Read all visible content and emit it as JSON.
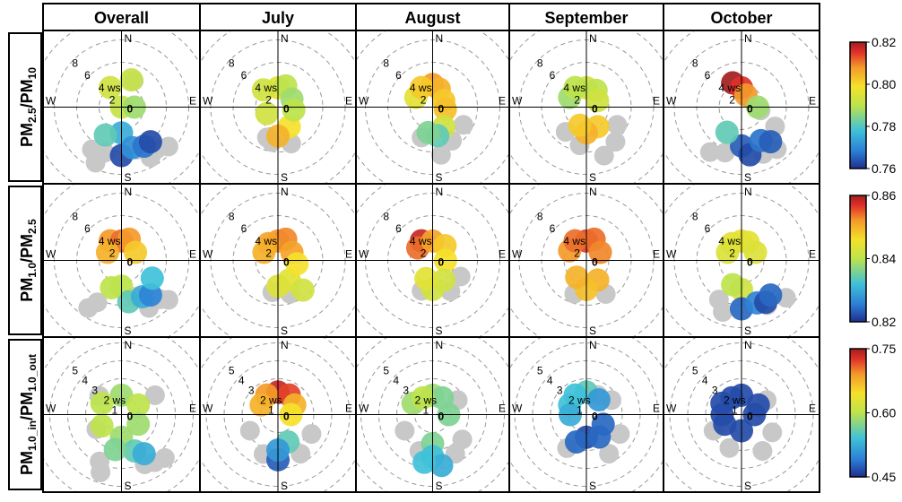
{
  "chart_data": {
    "type": "polar bivariate (wind-rose) plot grid",
    "columns": [
      "Overall",
      "July",
      "August",
      "September",
      "October"
    ],
    "rows": [
      {
        "label_parts": [
          [
            "PM",
            ""
          ],
          [
            "2.5",
            "sub"
          ],
          [
            "/PM",
            ""
          ],
          [
            "10",
            "sub"
          ]
        ],
        "radial_labels": [
          "8",
          "6",
          "4 ws",
          "2",
          "0"
        ],
        "colorbar": {
          "ticks": [
            "0.82",
            "0.80",
            "0.78",
            "0.76"
          ],
          "min": 0.76,
          "max": 0.82
        }
      },
      {
        "label_parts": [
          [
            "PM",
            ""
          ],
          [
            "1.0",
            "sub"
          ],
          [
            "/PM",
            ""
          ],
          [
            "2.5",
            "sub"
          ]
        ],
        "radial_labels": [
          "8",
          "6",
          "4 ws",
          "2",
          "0"
        ],
        "colorbar": {
          "ticks": [
            "0.86",
            "0.84",
            "0.82"
          ],
          "min": 0.82,
          "max": 0.86
        }
      },
      {
        "label_parts": [
          [
            "PM",
            ""
          ],
          [
            "1.0_in",
            "sub"
          ],
          [
            "/PM",
            ""
          ],
          [
            "1.0_out",
            "sub"
          ]
        ],
        "radial_labels": [
          "5",
          "4",
          "3",
          "2 ws",
          "1",
          "0"
        ],
        "colorbar": {
          "ticks": [
            "0.75",
            "0.60",
            "0.45"
          ],
          "min": 0.45,
          "max": 0.75
        }
      }
    ],
    "directions": {
      "n": "N",
      "e": "E",
      "s": "S",
      "w": "W"
    },
    "colormap": [
      "#1f2f8f",
      "#2d7fd6",
      "#3fc1d8",
      "#bde34c",
      "#f5e12a",
      "#f49a2a",
      "#e0302a",
      "#a11e1e"
    ],
    "panels": [
      [
        {
          "gray": [
            [
              25,
              0.45
            ],
            [
              200,
              0.75
            ],
            [
              205,
              0.95
            ],
            [
              215,
              0.8
            ],
            [
              160,
              0.7
            ],
            [
              150,
              0.9
            ],
            [
              140,
              0.85
            ],
            [
              130,
              0.95
            ]
          ],
          "color": [
            [
              20,
              0.45,
              0.52
            ],
            [
              330,
              0.35,
              0.55
            ],
            [
              0,
              0,
              0.52
            ],
            [
              180,
              0.4,
              0.25
            ],
            [
              180,
              0.75,
              0.05
            ],
            [
              165,
              0.65,
              0.18
            ],
            [
              150,
              0.7,
              0.12
            ],
            [
              140,
              0.7,
              0.05
            ],
            [
              210,
              0.5,
              0.35
            ],
            [
              90,
              0.2,
              0.45
            ]
          ]
        },
        {
          "gray": [
            [
              190,
              0.55
            ],
            [
              160,
              0.6
            ],
            [
              200,
              0.5
            ]
          ],
          "color": [
            [
              0,
              0.3,
              0.6
            ],
            [
              20,
              0.35,
              0.5
            ],
            [
              60,
              0.25,
              0.45
            ],
            [
              150,
              0.35,
              0.65
            ],
            [
              180,
              0.45,
              0.75
            ],
            [
              240,
              0.2,
              0.55
            ],
            [
              320,
              0.35,
              0.55
            ],
            [
              100,
              0.25,
              0.5
            ]
          ]
        },
        {
          "gray": [
            [
              150,
              0.6
            ],
            [
              120,
              0.55
            ],
            [
              170,
              0.75
            ],
            [
              200,
              0.5
            ]
          ],
          "color": [
            [
              0,
              0.35,
              0.8
            ],
            [
              20,
              0.3,
              0.75
            ],
            [
              60,
              0.2,
              0.7
            ],
            [
              100,
              0.2,
              0.72
            ],
            [
              150,
              0.35,
              0.55
            ],
            [
              170,
              0.45,
              0.35
            ],
            [
              190,
              0.4,
              0.4
            ],
            [
              300,
              0.3,
              0.6
            ],
            [
              330,
              0.35,
              0.7
            ]
          ]
        },
        {
          "gray": [
            [
              120,
              0.55
            ],
            [
              140,
              0.7
            ],
            [
              190,
              0.6
            ],
            [
              220,
              0.5
            ],
            [
              160,
              0.8
            ]
          ],
          "color": [
            [
              0,
              0.3,
              0.55
            ],
            [
              30,
              0.3,
              0.5
            ],
            [
              60,
              0.2,
              0.55
            ],
            [
              150,
              0.35,
              0.7
            ],
            [
              180,
              0.4,
              0.75
            ],
            [
              200,
              0.3,
              0.7
            ],
            [
              300,
              0.3,
              0.45
            ],
            [
              330,
              0.35,
              0.5
            ]
          ]
        },
        {
          "gray": [
            [
              200,
              0.75
            ],
            [
              215,
              0.85
            ],
            [
              155,
              0.8
            ],
            [
              140,
              0.85
            ],
            [
              120,
              0.6
            ],
            [
              100,
              0.3
            ]
          ],
          "color": [
            [
              340,
              0.4,
              1.0
            ],
            [
              0,
              0.3,
              0.92
            ],
            [
              20,
              0.2,
              0.8
            ],
            [
              180,
              0.6,
              0.08
            ],
            [
              170,
              0.75,
              0.05
            ],
            [
              150,
              0.6,
              0.12
            ],
            [
              140,
              0.7,
              0.08
            ],
            [
              210,
              0.45,
              0.35
            ],
            [
              90,
              0.25,
              0.45
            ]
          ]
        }
      ],
      [
        {
          "gray": [
            [
              210,
              0.75
            ],
            [
              215,
              0.9
            ],
            [
              160,
              0.6
            ],
            [
              150,
              0.85
            ],
            [
              135,
              0.85
            ],
            [
              130,
              0.95
            ]
          ],
          "color": [
            [
              330,
              0.35,
              0.8
            ],
            [
              0,
              0.3,
              0.85
            ],
            [
              20,
              0.35,
              0.8
            ],
            [
              300,
              0.25,
              0.75
            ],
            [
              60,
              0.25,
              0.7
            ],
            [
              180,
              0.4,
              0.5
            ],
            [
              170,
              0.65,
              0.35
            ],
            [
              150,
              0.65,
              0.25
            ],
            [
              140,
              0.7,
              0.15
            ],
            [
              120,
              0.55,
              0.3
            ],
            [
              200,
              0.45,
              0.5
            ]
          ]
        },
        {
          "gray": [
            [
              190,
              0.5
            ],
            [
              160,
              0.55
            ]
          ],
          "color": [
            [
              0,
              0.3,
              0.8
            ],
            [
              20,
              0.35,
              0.82
            ],
            [
              60,
              0.25,
              0.78
            ],
            [
              330,
              0.3,
              0.78
            ],
            [
              300,
              0.25,
              0.75
            ],
            [
              150,
              0.35,
              0.6
            ],
            [
              180,
              0.4,
              0.58
            ],
            [
              140,
              0.6,
              0.55
            ],
            [
              100,
              0.3,
              0.65
            ]
          ]
        },
        {
          "gray": [
            [
              150,
              0.55
            ],
            [
              200,
              0.5
            ],
            [
              120,
              0.5
            ]
          ],
          "color": [
            [
              330,
              0.35,
              0.95
            ],
            [
              310,
              0.3,
              0.85
            ],
            [
              0,
              0.3,
              0.78
            ],
            [
              40,
              0.3,
              0.7
            ],
            [
              90,
              0.2,
              0.65
            ],
            [
              150,
              0.35,
              0.55
            ],
            [
              180,
              0.45,
              0.55
            ],
            [
              200,
              0.3,
              0.6
            ]
          ]
        },
        {
          "gray": [
            [
              150,
              0.6
            ],
            [
              200,
              0.55
            ]
          ],
          "color": [
            [
              0,
              0.3,
              0.9
            ],
            [
              20,
              0.35,
              0.85
            ],
            [
              60,
              0.25,
              0.82
            ],
            [
              300,
              0.3,
              0.8
            ],
            [
              330,
              0.35,
              0.85
            ],
            [
              150,
              0.35,
              0.75
            ],
            [
              180,
              0.45,
              0.72
            ],
            [
              210,
              0.3,
              0.75
            ]
          ]
        },
        {
          "gray": [
            [
              210,
              0.7
            ],
            [
              200,
              0.85
            ],
            [
              150,
              0.8
            ],
            [
              130,
              0.9
            ]
          ],
          "color": [
            [
              0,
              0.3,
              0.62
            ],
            [
              20,
              0.3,
              0.6
            ],
            [
              330,
              0.3,
              0.6
            ],
            [
              300,
              0.25,
              0.58
            ],
            [
              60,
              0.25,
              0.58
            ],
            [
              180,
              0.45,
              0.55
            ],
            [
              180,
              0.75,
              0.1
            ],
            [
              160,
              0.7,
              0.15
            ],
            [
              150,
              0.75,
              0.05
            ],
            [
              140,
              0.7,
              0.1
            ],
            [
              200,
              0.4,
              0.5
            ]
          ]
        }
      ],
      [
        {
          "gray": [
            [
              205,
              0.8
            ],
            [
              200,
              0.95
            ],
            [
              155,
              0.85
            ],
            [
              145,
              0.9
            ],
            [
              135,
              0.95
            ],
            [
              60,
              0.6
            ],
            [
              310,
              0.45
            ],
            [
              240,
              0.45
            ]
          ],
          "color": [
            [
              0,
              0.3,
              0.45
            ],
            [
              60,
              0.3,
              0.5
            ],
            [
              120,
              0.3,
              0.45
            ],
            [
              180,
              0.35,
              0.45
            ],
            [
              240,
              0.35,
              0.5
            ],
            [
              300,
              0.35,
              0.5
            ],
            [
              160,
              0.6,
              0.35
            ],
            [
              150,
              0.7,
              0.25
            ],
            [
              190,
              0.55,
              0.4
            ]
          ]
        },
        {
          "gray": [
            [
              150,
              0.7
            ],
            [
              200,
              0.65
            ],
            [
              240,
              0.5
            ],
            [
              120,
              0.6
            ]
          ],
          "color": [
            [
              0,
              0.35,
              0.95
            ],
            [
              30,
              0.35,
              0.9
            ],
            [
              330,
              0.35,
              0.8
            ],
            [
              300,
              0.3,
              0.75
            ],
            [
              60,
              0.3,
              0.75
            ],
            [
              90,
              0.2,
              0.65
            ],
            [
              160,
              0.45,
              0.35
            ],
            [
              180,
              0.7,
              0.08
            ],
            [
              180,
              0.55,
              0.2
            ]
          ]
        },
        {
          "gray": [
            [
              130,
              0.6
            ],
            [
              150,
              0.7
            ],
            [
              200,
              0.6
            ],
            [
              240,
              0.5
            ],
            [
              60,
              0.45
            ]
          ],
          "color": [
            [
              0,
              0.3,
              0.45
            ],
            [
              30,
              0.3,
              0.4
            ],
            [
              300,
              0.35,
              0.45
            ],
            [
              330,
              0.3,
              0.5
            ],
            [
              90,
              0.25,
              0.4
            ],
            [
              180,
              0.45,
              0.4
            ],
            [
              180,
              0.65,
              0.3
            ],
            [
              170,
              0.8,
              0.25
            ],
            [
              190,
              0.75,
              0.3
            ]
          ]
        },
        {
          "gray": [
            [
              60,
              0.45
            ],
            [
              120,
              0.6
            ],
            [
              150,
              0.7
            ],
            [
              210,
              0.6
            ],
            [
              30,
              0.35
            ]
          ],
          "color": [
            [
              0,
              0.35,
              0.35
            ],
            [
              330,
              0.35,
              0.3
            ],
            [
              300,
              0.3,
              0.3
            ],
            [
              270,
              0.25,
              0.25
            ],
            [
              40,
              0.3,
              0.2
            ],
            [
              180,
              0.35,
              0.05
            ],
            [
              200,
              0.45,
              0.1
            ],
            [
              150,
              0.4,
              0.1
            ],
            [
              120,
              0.3,
              0.1
            ]
          ]
        },
        {
          "gray": [
            [
              60,
              0.45
            ],
            [
              120,
              0.55
            ],
            [
              150,
              0.65
            ],
            [
              200,
              0.55
            ],
            [
              240,
              0.5
            ]
          ],
          "color": [
            [
              0,
              0.3,
              0.05
            ],
            [
              330,
              0.3,
              0.05
            ],
            [
              300,
              0.35,
              0.05
            ],
            [
              270,
              0.3,
              0.05
            ],
            [
              60,
              0.3,
              0.05
            ],
            [
              90,
              0.2,
              0.05
            ],
            [
              180,
              0.25,
              0.05
            ],
            [
              240,
              0.3,
              0.05
            ]
          ]
        }
      ]
    ]
  }
}
